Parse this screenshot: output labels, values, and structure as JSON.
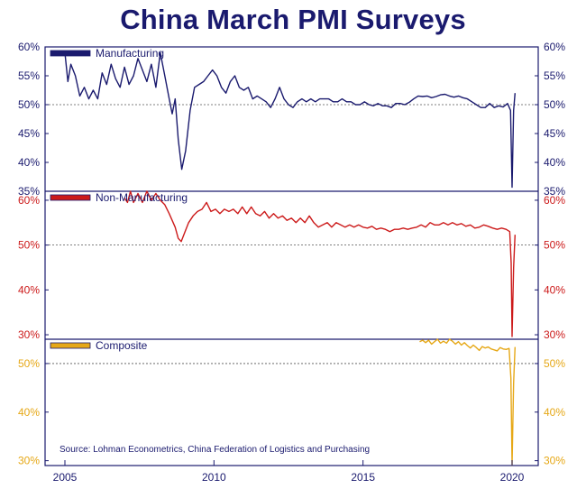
{
  "title": "China March PMI Surveys",
  "source": "Source: Lohman Econometrics, China Federation of Logistics and Purchasing",
  "colors": {
    "frame": "#1a1a6e",
    "manufacturing": "#1a1a6e",
    "nonmanufacturing": "#cc1a1a",
    "composite": "#e6a817"
  },
  "chart_data": [
    {
      "type": "line",
      "panel": "top",
      "series": [
        {
          "name": "Manufacturing"
        }
      ],
      "x_ticks": [
        "2005",
        "2010",
        "2015",
        "2020"
      ],
      "ylim": [
        35,
        60
      ],
      "y_ticks": [
        "35%",
        "40%",
        "45%",
        "50%",
        "55%",
        "60%"
      ],
      "reference_line": 50,
      "points": [
        [
          2005.0,
          59.0
        ],
        [
          2005.1,
          54.0
        ],
        [
          2005.2,
          57.0
        ],
        [
          2005.35,
          55.0
        ],
        [
          2005.5,
          51.5
        ],
        [
          2005.65,
          53.0
        ],
        [
          2005.8,
          51.0
        ],
        [
          2005.95,
          52.5
        ],
        [
          2006.1,
          51.0
        ],
        [
          2006.25,
          55.5
        ],
        [
          2006.4,
          53.5
        ],
        [
          2006.55,
          57.0
        ],
        [
          2006.7,
          54.5
        ],
        [
          2006.85,
          53.0
        ],
        [
          2007.0,
          56.5
        ],
        [
          2007.15,
          53.5
        ],
        [
          2007.3,
          55.0
        ],
        [
          2007.45,
          58.0
        ],
        [
          2007.6,
          56.0
        ],
        [
          2007.75,
          54.0
        ],
        [
          2007.9,
          57.0
        ],
        [
          2008.05,
          53.0
        ],
        [
          2008.2,
          59.0
        ],
        [
          2008.35,
          55.0
        ],
        [
          2008.5,
          51.0
        ],
        [
          2008.6,
          48.4
        ],
        [
          2008.7,
          51.0
        ],
        [
          2008.8,
          44.0
        ],
        [
          2008.92,
          38.8
        ],
        [
          2009.05,
          42.0
        ],
        [
          2009.2,
          49.0
        ],
        [
          2009.35,
          53.0
        ],
        [
          2009.5,
          53.5
        ],
        [
          2009.65,
          54.0
        ],
        [
          2009.8,
          55.0
        ],
        [
          2009.95,
          56.0
        ],
        [
          2010.1,
          55.0
        ],
        [
          2010.25,
          53.0
        ],
        [
          2010.4,
          52.0
        ],
        [
          2010.55,
          54.0
        ],
        [
          2010.7,
          55.0
        ],
        [
          2010.85,
          53.0
        ],
        [
          2011.0,
          52.5
        ],
        [
          2011.15,
          53.0
        ],
        [
          2011.3,
          51.0
        ],
        [
          2011.45,
          51.5
        ],
        [
          2011.6,
          51.0
        ],
        [
          2011.75,
          50.5
        ],
        [
          2011.9,
          49.5
        ],
        [
          2012.05,
          51.0
        ],
        [
          2012.2,
          53.0
        ],
        [
          2012.35,
          51.0
        ],
        [
          2012.5,
          50.0
        ],
        [
          2012.65,
          49.5
        ],
        [
          2012.8,
          50.5
        ],
        [
          2012.95,
          51.0
        ],
        [
          2013.1,
          50.5
        ],
        [
          2013.25,
          51.0
        ],
        [
          2013.4,
          50.5
        ],
        [
          2013.55,
          51.0
        ],
        [
          2013.7,
          51.0
        ],
        [
          2013.85,
          51.0
        ],
        [
          2014.0,
          50.5
        ],
        [
          2014.15,
          50.5
        ],
        [
          2014.3,
          51.0
        ],
        [
          2014.45,
          50.5
        ],
        [
          2014.6,
          50.5
        ],
        [
          2014.75,
          50.0
        ],
        [
          2014.9,
          50.0
        ],
        [
          2015.05,
          50.5
        ],
        [
          2015.2,
          50.0
        ],
        [
          2015.35,
          49.8
        ],
        [
          2015.5,
          50.2
        ],
        [
          2015.65,
          49.8
        ],
        [
          2015.8,
          49.8
        ],
        [
          2015.95,
          49.5
        ],
        [
          2016.1,
          50.2
        ],
        [
          2016.25,
          50.2
        ],
        [
          2016.4,
          50.0
        ],
        [
          2016.55,
          50.4
        ],
        [
          2016.7,
          51.0
        ],
        [
          2016.85,
          51.5
        ],
        [
          2017.0,
          51.4
        ],
        [
          2017.15,
          51.5
        ],
        [
          2017.3,
          51.2
        ],
        [
          2017.45,
          51.4
        ],
        [
          2017.6,
          51.7
        ],
        [
          2017.75,
          51.8
        ],
        [
          2017.9,
          51.5
        ],
        [
          2018.05,
          51.3
        ],
        [
          2018.2,
          51.5
        ],
        [
          2018.35,
          51.2
        ],
        [
          2018.5,
          51.0
        ],
        [
          2018.65,
          50.5
        ],
        [
          2018.8,
          50.0
        ],
        [
          2018.95,
          49.5
        ],
        [
          2019.1,
          49.5
        ],
        [
          2019.25,
          50.2
        ],
        [
          2019.4,
          49.5
        ],
        [
          2019.55,
          49.8
        ],
        [
          2019.7,
          49.6
        ],
        [
          2019.85,
          50.2
        ],
        [
          2019.95,
          49.0
        ],
        [
          2020.0,
          35.7
        ],
        [
          2020.05,
          49.0
        ],
        [
          2020.1,
          52.0
        ]
      ]
    },
    {
      "type": "line",
      "panel": "middle",
      "series": [
        {
          "name": "Non-Manufacturing"
        }
      ],
      "x_ticks": [
        "2005",
        "2010",
        "2015",
        "2020"
      ],
      "ylim": [
        29,
        62
      ],
      "y_ticks": [
        "30%",
        "40%",
        "50%",
        "60%"
      ],
      "reference_line": 50,
      "points": [
        [
          2007.0,
          60.5
        ],
        [
          2007.1,
          59.5
        ],
        [
          2007.2,
          62.0
        ],
        [
          2007.3,
          59.5
        ],
        [
          2007.45,
          61.5
        ],
        [
          2007.6,
          59.5
        ],
        [
          2007.75,
          62.0
        ],
        [
          2007.9,
          60.0
        ],
        [
          2008.05,
          61.5
        ],
        [
          2008.2,
          60.0
        ],
        [
          2008.35,
          59.0
        ],
        [
          2008.5,
          57.0
        ],
        [
          2008.6,
          55.5
        ],
        [
          2008.7,
          54.0
        ],
        [
          2008.8,
          51.5
        ],
        [
          2008.9,
          50.8
        ],
        [
          2009.0,
          52.5
        ],
        [
          2009.15,
          55.0
        ],
        [
          2009.3,
          56.5
        ],
        [
          2009.45,
          57.5
        ],
        [
          2009.6,
          58.0
        ],
        [
          2009.75,
          59.5
        ],
        [
          2009.9,
          57.5
        ],
        [
          2010.05,
          58.0
        ],
        [
          2010.2,
          57.0
        ],
        [
          2010.35,
          58.0
        ],
        [
          2010.5,
          57.5
        ],
        [
          2010.65,
          58.0
        ],
        [
          2010.8,
          57.0
        ],
        [
          2010.95,
          58.5
        ],
        [
          2011.1,
          57.0
        ],
        [
          2011.25,
          58.5
        ],
        [
          2011.4,
          57.0
        ],
        [
          2011.55,
          56.5
        ],
        [
          2011.7,
          57.5
        ],
        [
          2011.85,
          56.0
        ],
        [
          2012.0,
          57.0
        ],
        [
          2012.15,
          56.0
        ],
        [
          2012.3,
          56.5
        ],
        [
          2012.45,
          55.5
        ],
        [
          2012.6,
          56.0
        ],
        [
          2012.75,
          55.0
        ],
        [
          2012.9,
          56.0
        ],
        [
          2013.05,
          55.0
        ],
        [
          2013.2,
          56.5
        ],
        [
          2013.35,
          55.0
        ],
        [
          2013.5,
          54.0
        ],
        [
          2013.65,
          54.5
        ],
        [
          2013.8,
          55.0
        ],
        [
          2013.95,
          54.0
        ],
        [
          2014.1,
          55.0
        ],
        [
          2014.25,
          54.5
        ],
        [
          2014.4,
          54.0
        ],
        [
          2014.55,
          54.5
        ],
        [
          2014.7,
          54.0
        ],
        [
          2014.85,
          54.5
        ],
        [
          2015.0,
          54.0
        ],
        [
          2015.15,
          53.8
        ],
        [
          2015.3,
          54.2
        ],
        [
          2015.45,
          53.5
        ],
        [
          2015.6,
          53.8
        ],
        [
          2015.75,
          53.5
        ],
        [
          2015.9,
          53.0
        ],
        [
          2016.05,
          53.5
        ],
        [
          2016.2,
          53.5
        ],
        [
          2016.35,
          53.8
        ],
        [
          2016.5,
          53.5
        ],
        [
          2016.65,
          53.8
        ],
        [
          2016.8,
          54.0
        ],
        [
          2016.95,
          54.5
        ],
        [
          2017.1,
          54.0
        ],
        [
          2017.25,
          55.0
        ],
        [
          2017.4,
          54.5
        ],
        [
          2017.55,
          54.5
        ],
        [
          2017.7,
          55.0
        ],
        [
          2017.85,
          54.5
        ],
        [
          2018.0,
          55.0
        ],
        [
          2018.15,
          54.5
        ],
        [
          2018.3,
          54.8
        ],
        [
          2018.45,
          54.2
        ],
        [
          2018.6,
          54.5
        ],
        [
          2018.75,
          53.8
        ],
        [
          2018.9,
          54.0
        ],
        [
          2019.05,
          54.5
        ],
        [
          2019.2,
          54.2
        ],
        [
          2019.35,
          53.8
        ],
        [
          2019.5,
          53.5
        ],
        [
          2019.65,
          53.8
        ],
        [
          2019.8,
          53.5
        ],
        [
          2019.92,
          53.0
        ],
        [
          2019.97,
          46.0
        ],
        [
          2020.0,
          29.6
        ],
        [
          2020.05,
          45.0
        ],
        [
          2020.1,
          52.3
        ]
      ]
    },
    {
      "type": "line",
      "panel": "bottom",
      "series": [
        {
          "name": "Composite"
        }
      ],
      "x_ticks": [
        "2005",
        "2010",
        "2015",
        "2020"
      ],
      "ylim": [
        29,
        55
      ],
      "y_ticks": [
        "30%",
        "40%",
        "50%"
      ],
      "reference_line": 50,
      "points": [
        [
          2016.9,
          54.5
        ],
        [
          2017.0,
          54.8
        ],
        [
          2017.1,
          54.3
        ],
        [
          2017.2,
          54.8
        ],
        [
          2017.3,
          54.0
        ],
        [
          2017.4,
          54.5
        ],
        [
          2017.5,
          55.0
        ],
        [
          2017.6,
          54.2
        ],
        [
          2017.7,
          54.6
        ],
        [
          2017.8,
          54.2
        ],
        [
          2017.9,
          55.0
        ],
        [
          2018.0,
          54.6
        ],
        [
          2018.1,
          54.0
        ],
        [
          2018.2,
          54.5
        ],
        [
          2018.3,
          53.8
        ],
        [
          2018.4,
          54.3
        ],
        [
          2018.5,
          53.7
        ],
        [
          2018.6,
          53.2
        ],
        [
          2018.7,
          53.8
        ],
        [
          2018.8,
          53.3
        ],
        [
          2018.9,
          52.7
        ],
        [
          2019.0,
          53.5
        ],
        [
          2019.1,
          53.2
        ],
        [
          2019.2,
          53.4
        ],
        [
          2019.3,
          53.0
        ],
        [
          2019.4,
          52.8
        ],
        [
          2019.5,
          52.6
        ],
        [
          2019.6,
          53.3
        ],
        [
          2019.7,
          53.0
        ],
        [
          2019.8,
          52.9
        ],
        [
          2019.9,
          53.1
        ],
        [
          2019.96,
          47.0
        ],
        [
          2020.0,
          29.1
        ],
        [
          2020.05,
          46.0
        ],
        [
          2020.1,
          53.4
        ]
      ]
    }
  ]
}
